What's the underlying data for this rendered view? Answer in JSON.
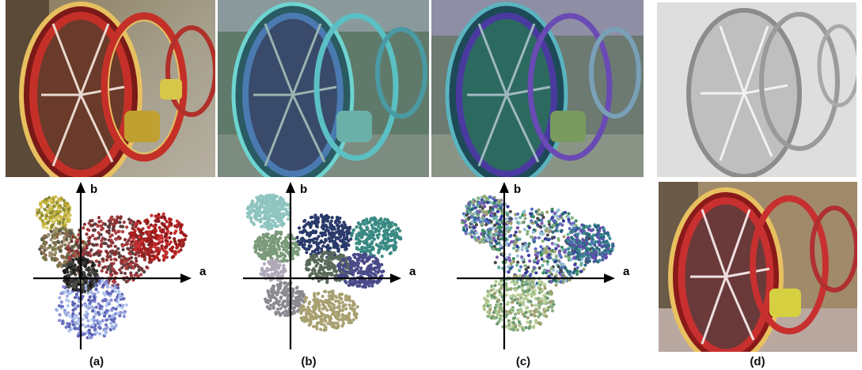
{
  "figure": {
    "captions": [
      "(a)",
      "(b)",
      "(c)",
      "(d)"
    ],
    "axis_labels": {
      "x": "a",
      "y": "b"
    },
    "panels": [
      {
        "id": "a",
        "content": "original photo of red wooden cart wheels",
        "scatter": "continuous colour distribution in a-b plane"
      },
      {
        "id": "b",
        "content": "quantized teal/blue palette rendering of wheels",
        "scatter": "clustered regions in a-b plane"
      },
      {
        "id": "c",
        "content": "multi-colour mosaic rendering of wheels",
        "scatter": "mixed coloured points in a-b plane"
      },
      {
        "id": "d",
        "content": "grayscale map (top) and recoloured red wheels (bottom)"
      }
    ]
  }
}
